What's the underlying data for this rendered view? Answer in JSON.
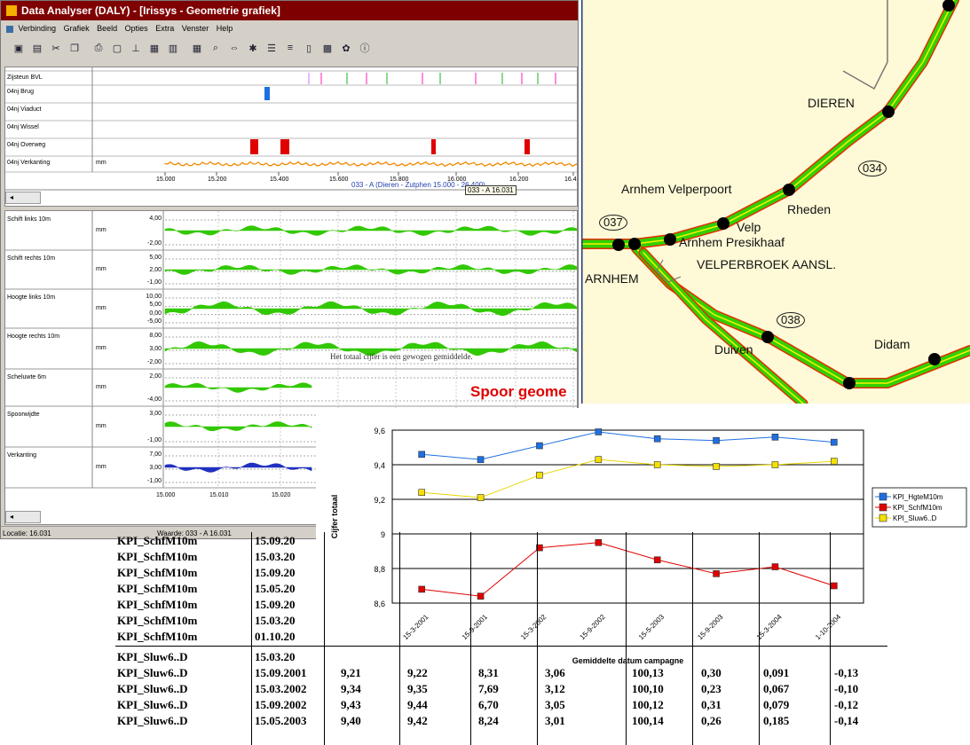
{
  "window": {
    "title": "Data Analyser (DALY) - [Irissys - Geometrie grafiek]",
    "menu": [
      "Verbinding",
      "Grafiek",
      "Beeld",
      "Opties",
      "Extra",
      "Venster",
      "Help"
    ],
    "toolbar_icons": [
      "open-icon",
      "save-icon",
      "cut-icon",
      "copy-icon",
      "print-icon",
      "preview-icon",
      "ruler-icon",
      "report-icon",
      "grid-icon",
      "calculator-icon",
      "search-icon",
      "arrows-icon",
      "tools-icon",
      "layers-icon",
      "rows-icon",
      "columns-icon",
      "select-icon",
      "settings-icon",
      "info-icon"
    ]
  },
  "top_panel": {
    "rows": [
      {
        "label": "Zijsteun BVL",
        "unit": ""
      },
      {
        "label": "04nj Brug",
        "unit": ""
      },
      {
        "label": "04nj Viaduct",
        "unit": ""
      },
      {
        "label": "04nj Wissel",
        "unit": ""
      },
      {
        "label": "04nj Overweg",
        "unit": ""
      },
      {
        "label": "04nj Verkanting",
        "unit": "mm"
      }
    ],
    "ticks": [
      "15.000",
      "15.200",
      "15.400",
      "15.600",
      "15.800",
      "16.000",
      "16.200",
      "16.4"
    ],
    "route": "033 - A (Dieren - Zutphen 15.000 - 26.400)",
    "tooltip": "033 - A 16.031"
  },
  "bottom_panel": {
    "rows": [
      {
        "label": "Schift links 10m",
        "unit": "mm",
        "values": [
          "4,00",
          "-2,00"
        ]
      },
      {
        "label": "Schift rechts 10m",
        "unit": "mm",
        "values": [
          "5,00",
          "2,00",
          "-1,00"
        ]
      },
      {
        "label": "Hoogte links 10m",
        "unit": "mm",
        "values": [
          "10,00",
          "5,00",
          "0,00",
          "-5,00"
        ]
      },
      {
        "label": "Hoogte rechts 10m",
        "unit": "mm",
        "values": [
          "8,00",
          "3,00",
          "-2,00"
        ]
      },
      {
        "label": "Scheluwte 6m",
        "unit": "mm",
        "values": [
          "2,00",
          "-4,00"
        ]
      },
      {
        "label": "Spoorwijdte",
        "unit": "mm",
        "values": [
          "3,00",
          "-1,00"
        ]
      },
      {
        "label": "Verkanting",
        "unit": "mm",
        "values": [
          "7,00",
          "3,00",
          "-1,00"
        ]
      }
    ],
    "ticks": [
      "15.000",
      "15.010",
      "15.020"
    ]
  },
  "status": {
    "locatie": "Locatie: 16.031",
    "waarde": "Waarde: 033 - A 16.031"
  },
  "map": {
    "places": [
      "DIEREN",
      "Arnhem Velperpoort",
      "Rheden",
      "Velp",
      "Arnhem Presikhaaf",
      "VELPERBROEK AANSL.",
      "ARNHEM",
      "Duiven",
      "Didam"
    ],
    "lines": [
      "034",
      "037",
      "038"
    ]
  },
  "doc": {
    "caption": "Het totaal cijfer is een gewogen gemiddelde.",
    "heading": "Spoor geome"
  },
  "chart_data": {
    "type": "line",
    "categories": [
      "15-3-2001",
      "15-9-2001",
      "15-3-2002",
      "15-9-2002",
      "15-5-2003",
      "15-9-2003",
      "15-3-2004",
      "1-10-2004"
    ],
    "series": [
      {
        "name": "KPI_HgteM10m",
        "color": "#1e6fe0",
        "values": [
          9.46,
          9.43,
          9.51,
          9.59,
          9.55,
          9.54,
          9.56,
          9.53
        ]
      },
      {
        "name": "KPI_SchfM10m",
        "color": "#e00000",
        "values": [
          8.68,
          8.64,
          8.92,
          8.95,
          8.85,
          8.77,
          8.81,
          8.7
        ]
      },
      {
        "name": "KPI_Sluw6..D",
        "color": "#f5e000",
        "values": [
          9.24,
          9.21,
          9.34,
          9.43,
          9.4,
          9.39,
          9.4,
          9.42
        ]
      }
    ],
    "yticks": [
      "9,6",
      "9,4",
      "9,2",
      "9",
      "8,8",
      "8,6"
    ],
    "ylim": [
      8.6,
      9.6
    ],
    "ylabel": "Cijfer totaal",
    "xlabel": "Gemiddelte datum campagne",
    "legend": "right",
    "grid": true
  },
  "table": {
    "rows": [
      [
        "KPI_SchfM10m",
        "15.09.20",
        "",
        "",
        "",
        "",
        "",
        "",
        ""
      ],
      [
        "KPI_SchfM10m",
        "15.03.20",
        "",
        "",
        "",
        "",
        "",
        "",
        ""
      ],
      [
        "KPI_SchfM10m",
        "15.09.20",
        "",
        "",
        "",
        "",
        "",
        "",
        ""
      ],
      [
        "KPI_SchfM10m",
        "15.05.20",
        "",
        "",
        "",
        "",
        "",
        "",
        ""
      ],
      [
        "KPI_SchfM10m",
        "15.09.20",
        "",
        "",
        "",
        "",
        "",
        "",
        ""
      ],
      [
        "KPI_SchfM10m",
        "15.03.20",
        "",
        "",
        "",
        "",
        "",
        "",
        ""
      ],
      [
        "KPI_SchfM10m",
        "01.10.20",
        "",
        "",
        "",
        "",
        "",
        "",
        ""
      ],
      [
        "KPI_Sluw6..D",
        "15.03.20",
        "",
        "",
        "",
        "",
        "",
        "",
        ""
      ],
      [
        "KPI_Sluw6..D",
        "15.09.2001",
        "9,21",
        "9,22",
        "8,31",
        "3,06",
        "100,13",
        "0,30",
        "0,091",
        "-0,13"
      ],
      [
        "KPI_Sluw6..D",
        "15.03.2002",
        "9,34",
        "9,35",
        "7,69",
        "3,12",
        "100,10",
        "0,23",
        "0,067",
        "-0,10"
      ],
      [
        "KPI_Sluw6..D",
        "15.09.2002",
        "9,43",
        "9,44",
        "6,70",
        "3,05",
        "100,12",
        "0,31",
        "0,079",
        "-0,12"
      ],
      [
        "KPI_Sluw6..D",
        "15.05.2003",
        "9,40",
        "9,42",
        "8,24",
        "3,01",
        "100,14",
        "0,26",
        "0,185",
        "-0,14"
      ]
    ]
  }
}
